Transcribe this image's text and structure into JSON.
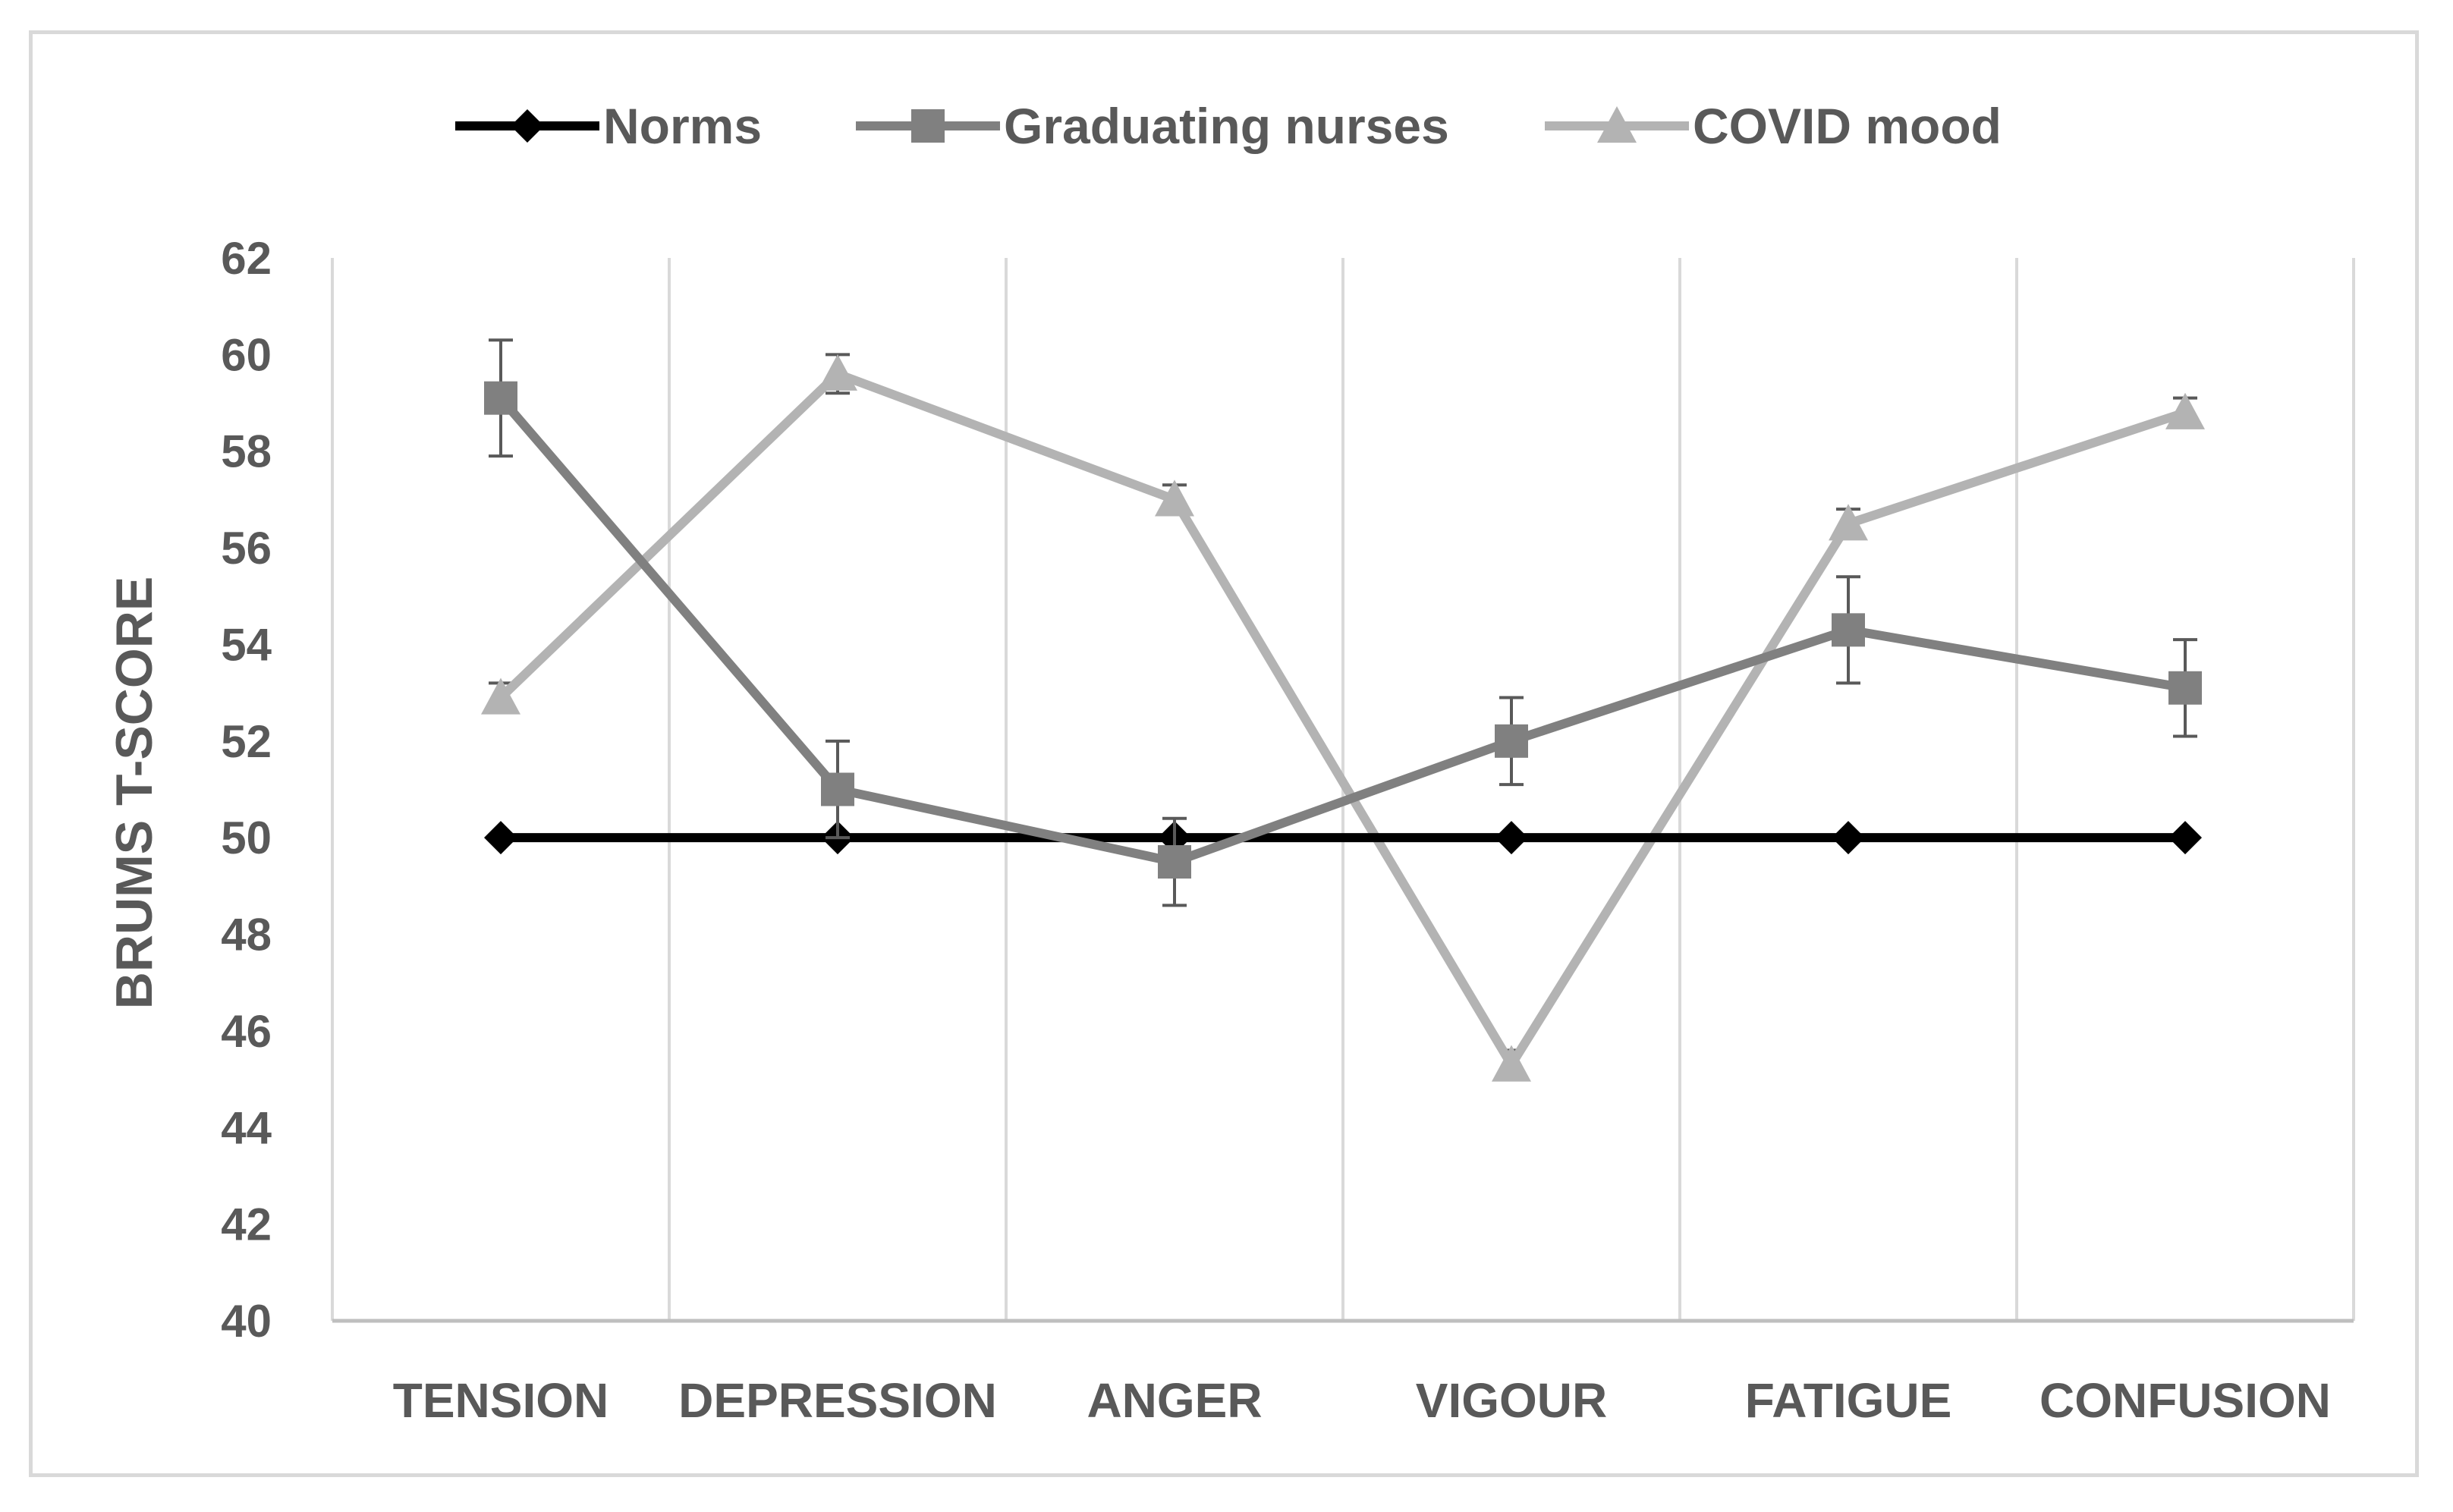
{
  "chart_data": {
    "type": "line",
    "title": "",
    "xlabel": "",
    "ylabel": "BRUMS T-SCORE",
    "ylim": [
      40,
      62
    ],
    "ytick_step": 2,
    "yticks": [
      "40",
      "42",
      "44",
      "46",
      "48",
      "50",
      "52",
      "54",
      "56",
      "58",
      "60",
      "62"
    ],
    "categories": [
      "TENSION",
      "DEPRESSION",
      "ANGER",
      "VIGOUR",
      "FATIGUE",
      "CONFUSION"
    ],
    "legend_position": "top-center",
    "series": [
      {
        "name": "Norms",
        "color": "#000000",
        "marker": "diamond",
        "values": [
          50,
          50,
          50,
          50,
          50,
          50
        ]
      },
      {
        "name": "Graduating nurses",
        "color": "#808080",
        "marker": "square",
        "values": [
          59.1,
          51.0,
          49.5,
          52.0,
          54.3,
          53.1
        ],
        "error": [
          1.2,
          1.0,
          0.9,
          0.9,
          1.1,
          1.0
        ]
      },
      {
        "name": "COVID mood",
        "color": "#b3b3b3",
        "marker": "triangle",
        "values": [
          52.9,
          59.6,
          57.0,
          45.3,
          56.5,
          58.8
        ],
        "error": [
          0.3,
          0.4,
          0.3,
          0.3,
          0.3,
          0.3
        ]
      }
    ]
  }
}
